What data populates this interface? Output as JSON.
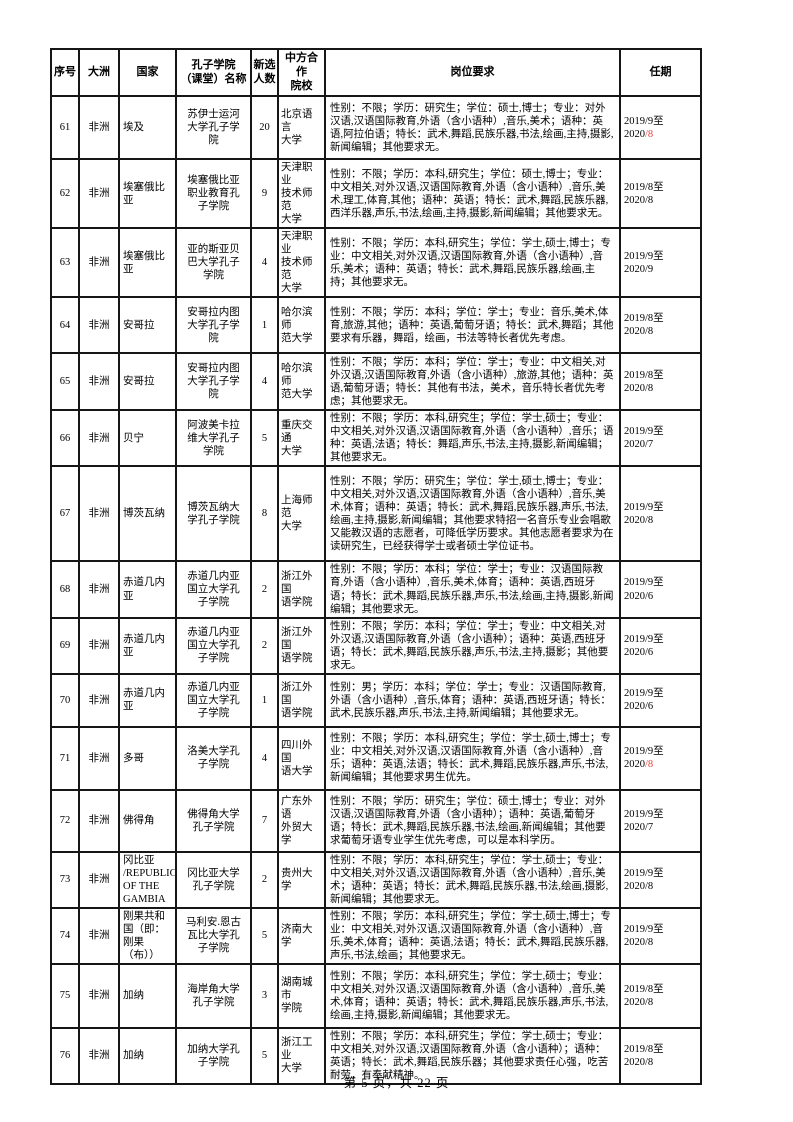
{
  "page": {
    "footer": "第 5 页，共 22 页"
  },
  "colors": {
    "text": "#000000",
    "highlight_red": "#e8413c",
    "border": "#161616",
    "background": "#ffffff"
  },
  "table": {
    "headers": [
      "序号",
      "大洲",
      "国家",
      "孔子学院\n（课堂）名称",
      "新选\n人数",
      "中方合作\n院校",
      "岗位要求",
      "任期"
    ],
    "rows": [
      {
        "no": "61",
        "continent": "非洲",
        "country": "埃及",
        "institute": "苏伊士运河\n大学孔子学\n院",
        "count": "20",
        "partner": "北京语言\n大学",
        "requirements": "性别：不限；学历：研究生；学位：硕士,博士；专业：对外汉语,汉语国际教育,外语（含小语种）,音乐,美术；语种：英语,阿拉伯语；特长：武术,舞蹈,民族乐器,书法,绘画,主持,摄影,新闻编辑；其他要求无。",
        "term_start": "2019/9至",
        "term_end": "2020",
        "term_end_red": "/8"
      },
      {
        "no": "62",
        "continent": "非洲",
        "country": "埃塞俄比\n亚",
        "institute": "埃塞俄比亚\n职业教育孔\n子学院",
        "count": "9",
        "partner": "天津职业\n技术师范\n大学",
        "requirements": "性别：不限；学历：本科,研究生；学位：硕士,博士；专业：中文相关,对外汉语,汉语国际教育,外语（含小语种）,音乐,美术,理工,体育,其他；语种：英语；特长：武术,舞蹈,民族乐器,西洋乐器,声乐,书法,绘画,主持,摄影,新闻编辑；其他要求无。",
        "term_start": "2019/8至",
        "term_end": "2020/8",
        "term_end_red": ""
      },
      {
        "no": "63",
        "continent": "非洲",
        "country": "埃塞俄比\n亚",
        "institute": "亚的斯亚贝\n巴大学孔子\n学院",
        "count": "4",
        "partner": "天津职业\n技术师范\n大学",
        "requirements": "性别：不限；学历：本科,研究生；学位：学士,硕士,博士；专业：中文相关,对外汉语,汉语国际教育,外语（含小语种）,音乐,美术；语种：英语；特长：武术,舞蹈,民族乐器,绘画,主持；其他要求无。",
        "term_start": "2019/9至",
        "term_end": "2020/9",
        "term_end_red": ""
      },
      {
        "no": "64",
        "continent": "非洲",
        "country": "安哥拉",
        "institute": "安哥拉内图\n大学孔子学\n院",
        "count": "1",
        "partner": "哈尔滨师\n范大学",
        "requirements": "性别：不限；学历：本科；学位：学士；专业：音乐,美术,体育,旅游,其他；语种：英语,葡萄牙语；特长：武术,舞蹈；其他要求有乐器，舞蹈，绘画，书法等特长者优先考虑。",
        "term_start": "2019/8至",
        "term_end": "2020/8",
        "term_end_red": ""
      },
      {
        "no": "65",
        "continent": "非洲",
        "country": "安哥拉",
        "institute": "安哥拉内图\n大学孔子学\n院",
        "count": "4",
        "partner": "哈尔滨师\n范大学",
        "requirements": "性别：不限；学历：本科；学位：学士；专业：中文相关,对外汉语,汉语国际教育,外语（含小语种）,旅游,其他；语种：英语,葡萄牙语；特长：其他有书法，美术，音乐特长者优先考虑；其他要求无。",
        "term_start": "2019/8至",
        "term_end": "2020/8",
        "term_end_red": ""
      },
      {
        "no": "66",
        "continent": "非洲",
        "country": "贝宁",
        "institute": "阿波美卡拉\n维大学孔子\n学院",
        "count": "5",
        "partner": "重庆交通\n大学",
        "requirements": "性别：不限；学历：本科,研究生；学位：学士,硕士；专业：中文相关,对外汉语,汉语国际教育,外语（含小语种）,音乐；语种：英语,法语；特长：舞蹈,声乐,书法,主持,摄影,新闻编辑；其他要求无。",
        "term_start": "2019/9至",
        "term_end": "2020/7",
        "term_end_red": ""
      },
      {
        "no": "67",
        "continent": "非洲",
        "country": "博茨瓦纳",
        "institute": "博茨瓦纳大\n学孔子学院",
        "count": "8",
        "partner": "上海师范\n大学",
        "requirements": "性别：不限；学历：研究生；学位：学士,硕士,博士；专业：中文相关,对外汉语,汉语国际教育,外语（含小语种）,音乐,美术,体育；语种：英语；特长：武术,舞蹈,民族乐器,声乐,书法,绘画,主持,摄影,新闻编辑；其他要求特招一名音乐专业会唱歌又能教汉语的志愿者，可降低学历要求。其他志愿者要求为在读研究生，已经获得学士或者硕士学位证书。",
        "term_start": "2019/9至",
        "term_end": "2020/8",
        "term_end_red": ""
      },
      {
        "no": "68",
        "continent": "非洲",
        "country": "赤道几内\n亚",
        "institute": "赤道几内亚\n国立大学孔\n子学院",
        "count": "2",
        "partner": "浙江外国\n语学院",
        "requirements": "性别：不限；学历：本科；学位：学士；专业：汉语国际教育,外语（含小语种）,音乐,美术,体育；语种：英语,西班牙语；特长：武术,舞蹈,民族乐器,声乐,书法,绘画,主持,摄影,新闻编辑；其他要求无。",
        "term_start": "2019/9至",
        "term_end": "2020/6",
        "term_end_red": ""
      },
      {
        "no": "69",
        "continent": "非洲",
        "country": "赤道几内\n亚",
        "institute": "赤道几内亚\n国立大学孔\n子学院",
        "count": "2",
        "partner": "浙江外国\n语学院",
        "requirements": "性别：不限；学历：本科；学位：学士；专业：中文相关,对外汉语,汉语国际教育,外语（含小语种）；语种：英语,西班牙语；特长：武术,舞蹈,民族乐器,声乐,书法,主持,摄影；其他要求无。",
        "term_start": "2019/9至",
        "term_end": "2020/6",
        "term_end_red": ""
      },
      {
        "no": "70",
        "continent": "非洲",
        "country": "赤道几内\n亚",
        "institute": "赤道几内亚\n国立大学孔\n子学院",
        "count": "1",
        "partner": "浙江外国\n语学院",
        "requirements": "性别：男；学历：本科；学位：学士；专业：汉语国际教育,外语（含小语种）,音乐,体育；语种：英语,西班牙语；特长：武术,民族乐器,声乐,书法,主持,新闻编辑；其他要求无。",
        "term_start": "2019/9至",
        "term_end": "2020/6",
        "term_end_red": ""
      },
      {
        "no": "71",
        "continent": "非洲",
        "country": "多哥",
        "institute": "洛美大学孔\n子学院",
        "count": "4",
        "partner": "四川外国\n语大学",
        "requirements": "性别：不限；学历：本科,研究生；学位：学士,硕士,博士；专业：中文相关,对外汉语,汉语国际教育,外语（含小语种）,音乐；语种：英语,法语；特长：武术,舞蹈,民族乐器,声乐,书法,新闻编辑；其他要求男生优先。",
        "term_start": "2019/9至",
        "term_end": "2020",
        "term_end_red": "/8"
      },
      {
        "no": "72",
        "continent": "非洲",
        "country": "佛得角",
        "institute": "佛得角大学\n孔子学院",
        "count": "7",
        "partner": "广东外语\n外贸大学",
        "requirements": "性别：不限；学历：研究生；学位：硕士,博士；专业：对外汉语,汉语国际教育,外语（含小语种）；语种：英语,葡萄牙语；特长：武术,舞蹈,民族乐器,书法,绘画,新闻编辑；其他要求葡萄牙语专业学生优先考虑，可以是本科学历。",
        "term_start": "2019/9至",
        "term_end": "2020/7",
        "term_end_red": ""
      },
      {
        "no": "73",
        "continent": "非洲",
        "country": "冈比亚\n/REPUBLIC\nOF THE\nGAMBIA",
        "institute": "冈比亚大学\n孔子学院",
        "count": "2",
        "partner": "贵州大学",
        "requirements": "性别：不限；学历：本科,研究生；学位：学士,硕士；专业：中文相关,对外汉语,汉语国际教育,外语（含小语种）,音乐,美术；语种：英语；特长：武术,舞蹈,民族乐器,书法,绘画,摄影,新闻编辑；其他要求无。",
        "term_start": "2019/9至",
        "term_end": "2020/8",
        "term_end_red": ""
      },
      {
        "no": "74",
        "continent": "非洲",
        "country": "刚果共和\n国（即：\n刚果\n（布））",
        "institute": "马利安.恩古\n瓦比大学孔\n子学院",
        "count": "5",
        "partner": "济南大学",
        "requirements": "性别：不限；学历：本科,研究生；学位：学士,硕士,博士；专业：中文相关,对外汉语,汉语国际教育,外语（含小语种）,音乐,美术,体育；语种：英语,法语；特长：武术,舞蹈,民族乐器,声乐,书法,绘画；其他要求无。",
        "term_start": "2019/9至",
        "term_end": "2020/8",
        "term_end_red": ""
      },
      {
        "no": "75",
        "continent": "非洲",
        "country": "加纳",
        "institute": "海岸角大学\n孔子学院",
        "count": "3",
        "partner": "湖南城市\n学院",
        "requirements": "性别：不限；学历：本科,研究生；学位：学士,硕士；专业：中文相关,对外汉语,汉语国际教育,外语（含小语种）,音乐,美术,体育；语种：英语；特长：武术,舞蹈,民族乐器,声乐,书法,绘画,主持,摄影,新闻编辑；其他要求无。",
        "term_start": "2019/8至",
        "term_end": "2020/8",
        "term_end_red": ""
      },
      {
        "no": "76",
        "continent": "非洲",
        "country": "加纳",
        "institute": "加纳大学孔\n子学院",
        "count": "5",
        "partner": "浙江工业\n大学",
        "requirements": "性别：不限；学历：本科,研究生；学位：学士,硕士；专业：中文相关,对外汉语,汉语国际教育,外语（含小语种）；语种：英语；特长：武术,舞蹈,民族乐器；其他要求责任心强，吃苦耐劳，有奉献精神。",
        "term_start": "2019/8至",
        "term_end": "2020/8",
        "term_end_red": ""
      }
    ]
  }
}
